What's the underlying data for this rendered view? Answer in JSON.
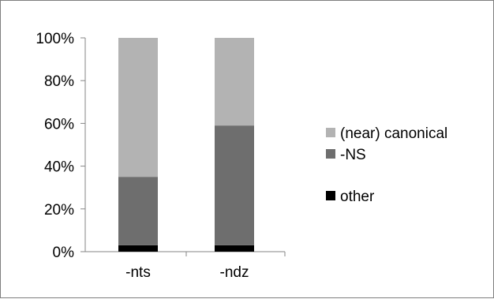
{
  "chart_data": {
    "type": "bar",
    "stacked": true,
    "percent_stacked": true,
    "categories": [
      "-nts",
      "-ndz"
    ],
    "series": [
      {
        "name": "other",
        "values": [
          3,
          3
        ],
        "color": "#000000"
      },
      {
        "name": "-NS",
        "values": [
          32,
          56
        ],
        "color": "#6e6e6e"
      },
      {
        "name": "(near) canonical",
        "values": [
          65,
          41
        ],
        "color": "#b3b3b3"
      }
    ],
    "y_ticks": [
      "0%",
      "20%",
      "40%",
      "60%",
      "80%",
      "100%"
    ],
    "ylim": [
      0,
      100
    ],
    "grid": false,
    "legend": {
      "position": "right",
      "entries": [
        "(near) canonical",
        "-NS",
        "other"
      ]
    }
  }
}
